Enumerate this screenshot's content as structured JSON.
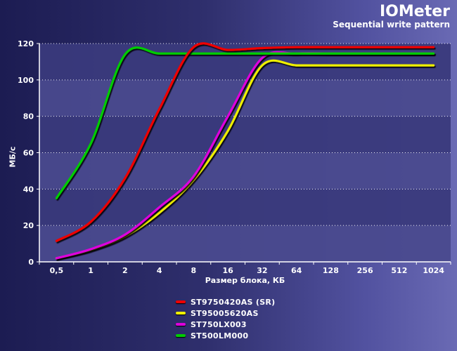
{
  "chart_data": {
    "type": "line",
    "title": "IOMeter",
    "subtitle": "Sequential write pattern",
    "xlabel": "Размер блока, КБ",
    "ylabel": "МБ/с",
    "x": [
      "0,5",
      "1",
      "2",
      "4",
      "8",
      "16",
      "32",
      "64",
      "128",
      "256",
      "512",
      "1024"
    ],
    "ylim": [
      0,
      120
    ],
    "yticks": [
      0,
      20,
      40,
      60,
      80,
      100,
      120
    ],
    "grid": true,
    "legend_position": "bottom-center",
    "series": [
      {
        "name": "ST9750420AS (SR)",
        "color": "#ee0000",
        "values": [
          11.5,
          22,
          46,
          84,
          118,
          116.5,
          117.5,
          118,
          118,
          118,
          118,
          118
        ]
      },
      {
        "name": "ST95005620AS",
        "color": "#eeee00",
        "values": [
          2,
          6.5,
          14,
          27,
          45,
          72,
          108,
          108,
          108,
          108,
          108,
          108
        ]
      },
      {
        "name": "ST750LX003",
        "color": "#dd00dd",
        "values": [
          2,
          7,
          15,
          30,
          47,
          80,
          112,
          114.5,
          114.5,
          114.5,
          114.5,
          114.5
        ]
      },
      {
        "name": "ST500LM000",
        "color": "#00cc00",
        "values": [
          35,
          65,
          114,
          114.5,
          114.5,
          114.5,
          114.5,
          114.5,
          114.5,
          114.5,
          114.5,
          114.5
        ]
      }
    ]
  }
}
